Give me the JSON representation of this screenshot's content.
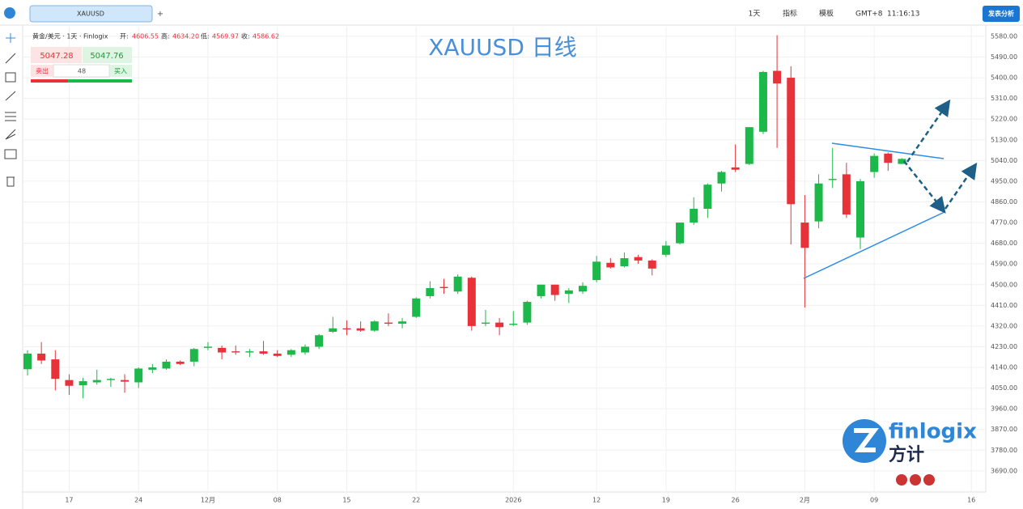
{
  "toolbar": {
    "tab": "XAUUSD",
    "add": "+",
    "interval": "1天",
    "indicators": "指标",
    "templates": "模板",
    "timezone": "GMT+8",
    "time": "11:16:13",
    "publish": "发表分析"
  },
  "legend": {
    "symbol": "黄金/美元 · 1天 · Finlogix",
    "open_label": "开:",
    "open": "4606.55",
    "high_label": "高:",
    "high": "4634.20",
    "low_label": "低:",
    "low": "4569.97",
    "close_label": "收:",
    "close": "4586.62"
  },
  "trade": {
    "sell_price": "5047.28",
    "buy_price": "5047.76",
    "sell": "卖出",
    "quantity": "48",
    "buy": "买入"
  },
  "watermark": "XAUUSD 日线",
  "logo": {
    "brand": "finlogix",
    "brand_cn": "方计"
  },
  "chart_data": {
    "type": "candlestick",
    "up_color": "#1cb849",
    "down_color": "#e8323a",
    "grid": true,
    "categories": [
      null,
      null,
      null,
      "17",
      null,
      null,
      null,
      null,
      "24",
      null,
      null,
      null,
      null,
      "12月",
      null,
      null,
      null,
      null,
      "08",
      null,
      null,
      null,
      null,
      "15",
      null,
      null,
      null,
      null,
      "22",
      null,
      null,
      null,
      null,
      null,
      null,
      "2026",
      null,
      null,
      null,
      null,
      null,
      "12",
      null,
      null,
      null,
      null,
      "19",
      null,
      null,
      null,
      null,
      "26",
      null,
      null,
      null,
      null,
      "2月",
      null,
      null,
      null,
      null,
      "09",
      null,
      null,
      null,
      null,
      null,
      null,
      "16"
    ],
    "open": [
      4132,
      4200,
      4175,
      4085,
      4062,
      4075,
      4085,
      4085,
      4075,
      4130,
      4135,
      4165,
      4165,
      4225,
      4225,
      4210,
      4205,
      4210,
      4200,
      4195,
      4205,
      4230,
      4295,
      4310,
      4310,
      4300,
      4335,
      4330,
      4360,
      4450,
      4490,
      4470,
      4530,
      4330,
      4335,
      4325,
      4335,
      4450,
      4500,
      4460,
      4470,
      4520,
      4595,
      4580,
      4620,
      4605,
      4630,
      4680,
      4770,
      4830,
      4940,
      5010,
      5025,
      5165,
      5430,
      5400,
      4770,
      4775,
      4955,
      4980,
      4705,
      4990,
      5070,
      5025,
      null,
      null,
      null,
      null,
      null
    ],
    "high": [
      4215,
      4250,
      4215,
      4110,
      4095,
      4130,
      4095,
      4110,
      4140,
      4155,
      4175,
      4170,
      4225,
      4250,
      4235,
      4235,
      4220,
      4255,
      4215,
      4220,
      4240,
      4285,
      4360,
      4345,
      4340,
      4345,
      4375,
      4355,
      4445,
      4515,
      4525,
      4545,
      4535,
      4390,
      4355,
      4385,
      4430,
      4500,
      4500,
      4485,
      4510,
      4625,
      4615,
      4640,
      4630,
      4610,
      4690,
      4770,
      4880,
      4940,
      4995,
      5110,
      5185,
      5430,
      5585,
      5450,
      4890,
      4980,
      5095,
      5030,
      4960,
      5070,
      5075,
      5050,
      null,
      null,
      null,
      null,
      null
    ],
    "low": [
      4105,
      4155,
      4040,
      4020,
      4005,
      4065,
      4055,
      4030,
      4050,
      4115,
      4130,
      4150,
      4145,
      4215,
      4175,
      4195,
      4185,
      4195,
      4185,
      4185,
      4195,
      4220,
      4290,
      4280,
      4295,
      4295,
      4320,
      4310,
      4355,
      4440,
      4460,
      4460,
      4300,
      4320,
      4280,
      4320,
      4325,
      4440,
      4430,
      4420,
      4460,
      4510,
      4570,
      4575,
      4590,
      4540,
      4620,
      4675,
      4760,
      4790,
      4905,
      4990,
      5020,
      5155,
      5095,
      4675,
      4400,
      4745,
      4920,
      4790,
      4655,
      4965,
      4995,
      5035,
      null,
      null,
      null,
      null,
      null
    ],
    "close": [
      4200,
      4170,
      4090,
      4060,
      4080,
      4085,
      4090,
      4078,
      4135,
      4140,
      4165,
      4155,
      4220,
      4230,
      4205,
      4205,
      4210,
      4200,
      4190,
      4215,
      4230,
      4280,
      4310,
      4305,
      4300,
      4340,
      4330,
      4340,
      4440,
      4485,
      4485,
      4535,
      4320,
      4335,
      4315,
      4330,
      4425,
      4500,
      4455,
      4475,
      4495,
      4600,
      4575,
      4615,
      4605,
      4570,
      4670,
      4770,
      4830,
      4935,
      4990,
      5000,
      5185,
      5425,
      5375,
      4850,
      4660,
      4940,
      4960,
      4805,
      4950,
      5060,
      5030,
      5047,
      null,
      null,
      null,
      null,
      null
    ],
    "ylim": [
      3598,
      5622
    ],
    "yticks": [
      {
        "value": 3690,
        "label": "3690.00"
      },
      {
        "value": 3780,
        "label": "3780.00"
      },
      {
        "value": 3870,
        "label": "3870.00"
      },
      {
        "value": 3960,
        "label": "3960.00"
      },
      {
        "value": 4050,
        "label": "4050.00"
      },
      {
        "value": 4140,
        "label": "4140.00"
      },
      {
        "value": 4230,
        "label": "4230.00"
      },
      {
        "value": 4320,
        "label": "4320.00"
      },
      {
        "value": 4410,
        "label": "4410.00"
      },
      {
        "value": 4500,
        "label": "4500.00"
      },
      {
        "value": 4590,
        "label": "4590.00"
      },
      {
        "value": 4680,
        "label": "4680.00"
      },
      {
        "value": 4770,
        "label": "4770.00"
      },
      {
        "value": 4860,
        "label": "4860.00"
      },
      {
        "value": 4950,
        "label": "4950.00"
      },
      {
        "value": 5040,
        "label": "5040.00"
      },
      {
        "value": 5130,
        "label": "5130.00"
      },
      {
        "value": 5220,
        "label": "5220.00"
      },
      {
        "value": 5310,
        "label": "5310.00"
      },
      {
        "value": 5400,
        "label": "5400.00"
      },
      {
        "value": 5490,
        "label": "5490.00"
      },
      {
        "value": 5580,
        "label": "5580.00"
      }
    ]
  }
}
